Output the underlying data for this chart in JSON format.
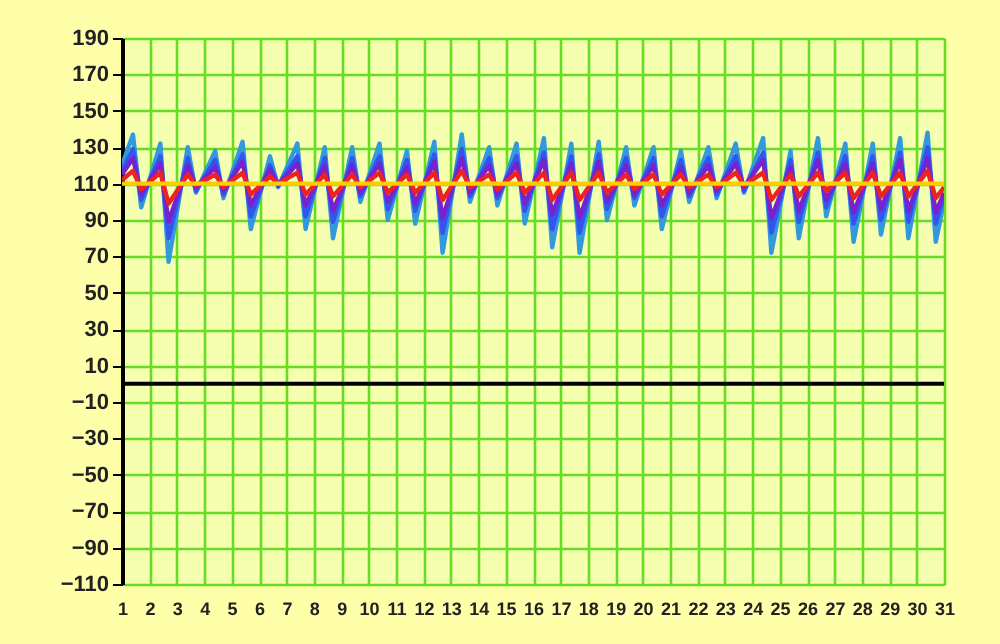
{
  "chart_data": {
    "type": "line",
    "x": [
      1,
      1.4,
      1.7,
      2.4,
      2.7,
      3.4,
      3.7,
      4.4,
      4.7,
      5.4,
      5.7,
      6.4,
      6.7,
      7.4,
      7.7,
      8.4,
      8.7,
      9.4,
      9.7,
      10.4,
      10.7,
      11.4,
      11.7,
      12.4,
      12.7,
      13.4,
      13.7,
      14.4,
      14.7,
      15.4,
      15.7,
      16.4,
      16.7,
      17.4,
      17.7,
      18.4,
      18.7,
      19.4,
      19.7,
      20.4,
      20.7,
      21.4,
      21.7,
      22.4,
      22.7,
      23.4,
      23.7,
      24.4,
      24.7,
      25.4,
      25.7,
      26.4,
      26.7,
      27.4,
      27.7,
      28.4,
      28.7,
      29.4,
      29.7,
      30.4,
      30.7,
      31
    ],
    "series": [
      {
        "color": "#3399dd",
        "values": [
          120,
          137,
          97,
          132,
          67,
          130,
          105,
          128,
          102,
          133,
          85,
          125,
          108,
          132,
          85,
          130,
          80,
          130,
          100,
          132,
          90,
          128,
          88,
          133,
          72,
          137,
          100,
          130,
          98,
          132,
          88,
          135,
          75,
          132,
          72,
          133,
          90,
          130,
          98,
          130,
          85,
          128,
          100,
          130,
          102,
          132,
          105,
          135,
          72,
          128,
          80,
          135,
          92,
          132,
          78,
          132,
          82,
          135,
          80,
          138,
          78,
          100
        ]
      },
      {
        "color": "#3355ee",
        "values": [
          117,
          129,
          101,
          125,
          80,
          124,
          106,
          123,
          104,
          126,
          92,
          120,
          109,
          125,
          92,
          124,
          89,
          124,
          103,
          125,
          96,
          123,
          95,
          126,
          83,
          129,
          103,
          124,
          102,
          125,
          95,
          127,
          85,
          125,
          83,
          126,
          96,
          124,
          102,
          124,
          92,
          123,
          103,
          124,
          104,
          125,
          106,
          127,
          83,
          123,
          89,
          127,
          97,
          125,
          88,
          125,
          90,
          127,
          89,
          130,
          88,
          103
        ]
      },
      {
        "color": "#7722cc",
        "values": [
          115,
          124,
          104,
          121,
          89,
          120,
          108,
          119,
          106,
          122,
          98,
          118,
          109,
          121,
          98,
          120,
          95,
          120,
          105,
          121,
          100,
          119,
          99,
          122,
          91,
          124,
          105,
          120,
          104,
          121,
          99,
          123,
          93,
          121,
          91,
          122,
          100,
          120,
          104,
          120,
          98,
          119,
          105,
          120,
          106,
          121,
          108,
          123,
          91,
          119,
          95,
          123,
          101,
          121,
          94,
          121,
          96,
          123,
          95,
          124,
          94,
          105
        ]
      },
      {
        "color": "#ee2222",
        "values": [
          112,
          117,
          107,
          116,
          99,
          115,
          109,
          115,
          108,
          116,
          104,
          114,
          110,
          116,
          104,
          115,
          103,
          115,
          108,
          116,
          105,
          115,
          105,
          116,
          101,
          117,
          108,
          115,
          107,
          116,
          105,
          116,
          101,
          116,
          101,
          116,
          105,
          115,
          107,
          115,
          104,
          115,
          108,
          115,
          108,
          116,
          109,
          116,
          101,
          115,
          103,
          116,
          106,
          116,
          102,
          116,
          103,
          116,
          103,
          117,
          102,
          108
        ]
      },
      {
        "color": "#ffcc00",
        "x": [
          1,
          31
        ],
        "values": [
          110,
          110
        ]
      }
    ],
    "xlim": [
      1,
      31
    ],
    "xticks": [
      1,
      2,
      3,
      4,
      5,
      6,
      7,
      8,
      9,
      10,
      11,
      12,
      13,
      14,
      15,
      16,
      17,
      18,
      19,
      20,
      21,
      22,
      23,
      24,
      25,
      26,
      27,
      28,
      29,
      30,
      31
    ],
    "ylim": [
      -110,
      190
    ],
    "yticks": [
      -110,
      -90,
      -70,
      -50,
      -30,
      -10,
      10,
      30,
      50,
      70,
      90,
      110,
      130,
      150,
      170,
      190
    ],
    "ref_lines": [
      {
        "axis": "y",
        "value": 0,
        "color": "#000000"
      }
    ],
    "grid": true
  }
}
